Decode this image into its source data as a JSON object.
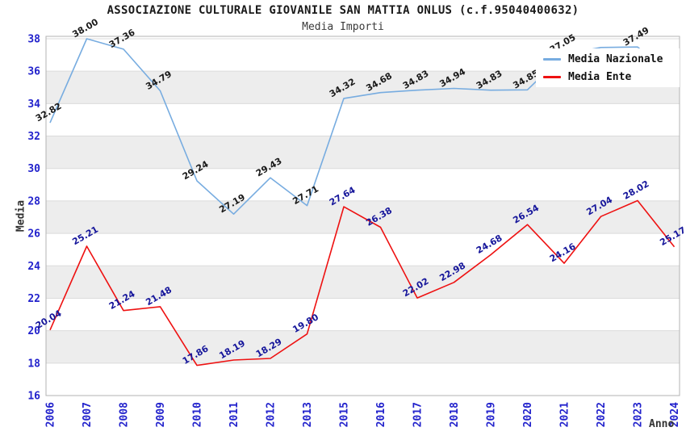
{
  "header": {
    "title": "ASSOCIAZIONE CULTURALE GIOVANILE SAN MATTIA ONLUS (c.f.95040400632)",
    "subtitle": "Media Importi"
  },
  "legend": {
    "items": [
      {
        "label": "Media Nazionale",
        "color": "#77ACE0"
      },
      {
        "label": "Media Ente",
        "color": "#EE1111"
      }
    ]
  },
  "axes": {
    "y_title": "Media",
    "x_title": "Anno"
  },
  "colors": {
    "tick_label": "#2222CC",
    "band_gray": "#EDEDED",
    "gridline": "#DBDBDB",
    "spine": "#B3B3B3",
    "nazionale_line": "#77ACE0",
    "ente_line": "#EE1111",
    "nazionale_data_label": "#1A1A1A",
    "ente_data_label": "#16169B"
  },
  "chart_data": {
    "type": "line",
    "title": "ASSOCIAZIONE CULTURALE GIOVANILE SAN MATTIA ONLUS (c.f.95040400632)",
    "subtitle": "Media Importi",
    "xlabel": "Anno",
    "ylabel": "Media",
    "categories": [
      "2006",
      "2007",
      "2008",
      "2009",
      "2010",
      "2011",
      "2012",
      "2013",
      "2015",
      "2016",
      "2017",
      "2018",
      "2019",
      "2020",
      "2021",
      "2022",
      "2023",
      "2024"
    ],
    "series": [
      {
        "name": "Media Nazionale",
        "color": "#77ACE0",
        "label_color": "#1A1A1A",
        "values": [
          32.82,
          38.0,
          37.36,
          34.79,
          29.24,
          27.19,
          29.43,
          27.71,
          34.32,
          34.68,
          34.83,
          34.94,
          34.83,
          34.85,
          37.05,
          37.46,
          37.49,
          35.5
        ],
        "point_labels": [
          "32.82",
          "38.00",
          "37.36",
          "34.79",
          "29.24",
          "27.19",
          "29.43",
          "27.71",
          "34.32",
          "34.68",
          "34.83",
          "34.94",
          "34.83",
          "34.85",
          "37.05",
          "",
          "37.49",
          ""
        ]
      },
      {
        "name": "Media Ente",
        "color": "#EE1111",
        "label_color": "#16169B",
        "values": [
          20.04,
          25.21,
          21.24,
          21.48,
          17.86,
          18.19,
          18.29,
          19.8,
          27.64,
          26.38,
          22.02,
          22.98,
          24.68,
          26.54,
          24.16,
          27.04,
          28.02,
          25.17
        ],
        "point_labels": [
          "20.04",
          "25.21",
          "21.24",
          "21.48",
          "17.86",
          "18.19",
          "18.29",
          "19.80",
          "27.64",
          "26.38",
          "22.02",
          "22.98",
          "24.68",
          "26.54",
          "24.16",
          "27.04",
          "28.02",
          "25.17"
        ]
      }
    ],
    "ylim": [
      16,
      38.15
    ],
    "yticks": [
      16,
      18,
      20,
      22,
      24,
      26,
      28,
      30,
      32,
      34,
      36,
      38
    ],
    "grid": "horizontal-bands-2-units",
    "gray_bands": [
      [
        18,
        20
      ],
      [
        22,
        24
      ],
      [
        26,
        28
      ],
      [
        30,
        32
      ],
      [
        34,
        36
      ]
    ],
    "legend_position": "top-right",
    "data_label_rotation_deg": -30,
    "x_tick_rotation_deg": -90
  }
}
